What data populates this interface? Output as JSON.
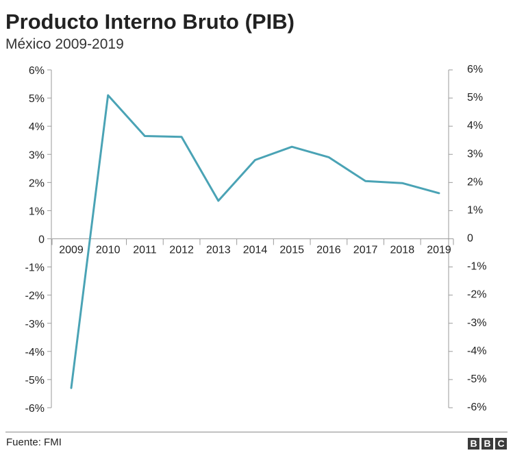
{
  "title": "Producto Interno Bruto (PIB)",
  "subtitle": "México 2009-2019",
  "source": "Fuente: FMI",
  "logo": [
    "B",
    "B",
    "C"
  ],
  "colors": {
    "line": "#4aa3b5",
    "axis": "#9a9a9a",
    "text": "#222222"
  },
  "chart_data": {
    "type": "line",
    "title": "Producto Interno Bruto (PIB)",
    "subtitle": "México 2009-2019",
    "xlabel": "",
    "ylabel": "",
    "ylim": [
      -6,
      6
    ],
    "categories": [
      "2009",
      "2010",
      "2011",
      "2012",
      "2013",
      "2014",
      "2015",
      "2016",
      "2017",
      "2018",
      "2019"
    ],
    "series": [
      {
        "name": "PIB",
        "values": [
          -5.3,
          5.1,
          3.65,
          3.62,
          1.35,
          2.8,
          3.27,
          2.9,
          2.05,
          1.98,
          1.62
        ]
      }
    ],
    "yticks": [
      {
        "value": 6,
        "label": "6%"
      },
      {
        "value": 5,
        "label": "5%"
      },
      {
        "value": 4,
        "label": "4%"
      },
      {
        "value": 3,
        "label": "3%"
      },
      {
        "value": 2,
        "label": "2%"
      },
      {
        "value": 1,
        "label": "1%"
      },
      {
        "value": 0,
        "label": "0"
      },
      {
        "value": -1,
        "label": "-1%"
      },
      {
        "value": -2,
        "label": "-2%"
      },
      {
        "value": -3,
        "label": "-3%"
      },
      {
        "value": -4,
        "label": "-4%"
      },
      {
        "value": -5,
        "label": "-5%"
      },
      {
        "value": -6,
        "label": "-6%"
      }
    ],
    "grid": false,
    "legend": "none"
  }
}
